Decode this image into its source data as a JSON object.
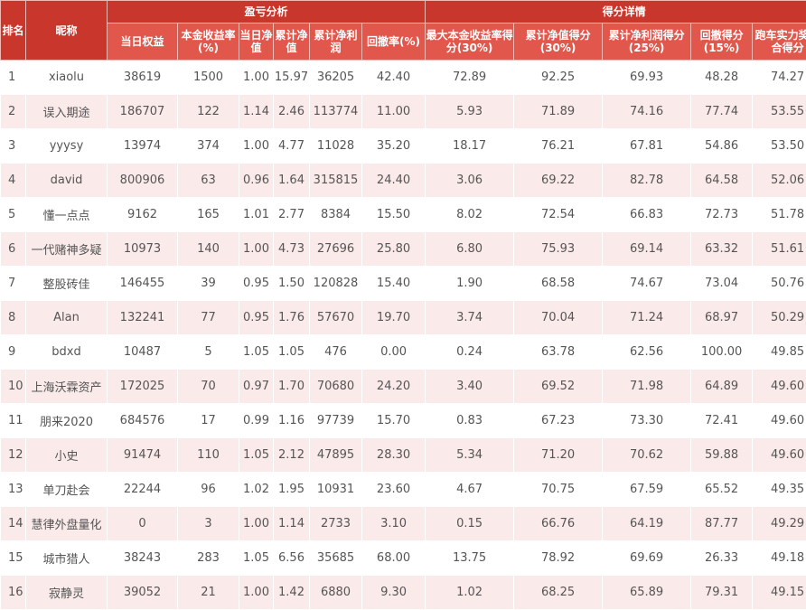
{
  "table": {
    "group_headers": {
      "rank": "排名",
      "nickname": "昵称",
      "profit_analysis": "盈亏分析",
      "score_details": "得分详情"
    },
    "columns": [
      "当日权益",
      "本金收益率(%)",
      "当日净值",
      "累计净值",
      "累计净利润",
      "回撤率(%)",
      "最大本金收益率得分(30%)",
      "累计净值得分(30%)",
      "累计净利润得分(25%)",
      "回撤得分(15%)",
      "跑车实力奖综合得分"
    ],
    "rows": [
      [
        "1",
        "xiaolu",
        "38619",
        "1500",
        "1.00",
        "15.97",
        "36205",
        "42.40",
        "72.89",
        "92.25",
        "69.93",
        "48.28",
        "74.27"
      ],
      [
        "2",
        "误入期途",
        "186707",
        "122",
        "1.14",
        "2.46",
        "113774",
        "11.00",
        "5.93",
        "71.89",
        "74.16",
        "77.74",
        "53.55"
      ],
      [
        "3",
        "yyysy",
        "13974",
        "374",
        "1.00",
        "4.77",
        "11028",
        "35.20",
        "18.17",
        "76.21",
        "67.81",
        "54.86",
        "53.50"
      ],
      [
        "4",
        "david",
        "800906",
        "63",
        "0.96",
        "1.64",
        "315815",
        "24.40",
        "3.06",
        "69.22",
        "82.78",
        "64.58",
        "52.06"
      ],
      [
        "5",
        "懂一点点",
        "9162",
        "165",
        "1.01",
        "2.77",
        "8384",
        "15.50",
        "8.02",
        "72.54",
        "66.83",
        "72.73",
        "51.78"
      ],
      [
        "6",
        "一代赌神多疑",
        "10973",
        "140",
        "1.00",
        "4.73",
        "27696",
        "25.80",
        "6.80",
        "75.93",
        "69.14",
        "63.32",
        "51.61"
      ],
      [
        "7",
        "整股砖佳",
        "146455",
        "39",
        "0.95",
        "1.50",
        "120828",
        "15.40",
        "1.90",
        "68.58",
        "74.67",
        "73.04",
        "50.76"
      ],
      [
        "8",
        "Alan",
        "132241",
        "77",
        "0.95",
        "1.76",
        "57670",
        "19.70",
        "3.74",
        "70.04",
        "71.24",
        "68.97",
        "50.29"
      ],
      [
        "9",
        "bdxd",
        "10487",
        "5",
        "1.05",
        "1.05",
        "476",
        "0.00",
        "0.24",
        "63.78",
        "62.56",
        "100.00",
        "49.85"
      ],
      [
        "10",
        "上海沃霖资产",
        "172025",
        "70",
        "0.97",
        "1.70",
        "70680",
        "24.20",
        "3.40",
        "69.52",
        "71.98",
        "64.89",
        "49.60"
      ],
      [
        "11",
        "朋来2020",
        "684576",
        "17",
        "0.99",
        "1.16",
        "97739",
        "15.70",
        "0.83",
        "67.23",
        "73.30",
        "72.41",
        "49.60"
      ],
      [
        "12",
        "小史",
        "91474",
        "110",
        "1.05",
        "2.12",
        "47895",
        "28.30",
        "5.34",
        "71.20",
        "70.62",
        "59.88",
        "49.60"
      ],
      [
        "13",
        "单刀赴会",
        "22244",
        "96",
        "1.02",
        "1.95",
        "10931",
        "23.60",
        "4.67",
        "70.75",
        "67.59",
        "65.52",
        "49.35"
      ],
      [
        "14",
        "慧律外盘量化",
        "0",
        "3",
        "1.00",
        "1.14",
        "2733",
        "3.10",
        "0.15",
        "66.76",
        "64.19",
        "87.77",
        "49.29"
      ],
      [
        "15",
        "城市猎人",
        "38243",
        "283",
        "1.05",
        "6.56",
        "35685",
        "68.00",
        "13.75",
        "78.92",
        "69.69",
        "26.33",
        "49.18"
      ],
      [
        "16",
        "寂静灵",
        "39052",
        "21",
        "1.00",
        "1.42",
        "6880",
        "9.30",
        "1.02",
        "68.25",
        "65.89",
        "79.31",
        "49.15"
      ]
    ]
  }
}
